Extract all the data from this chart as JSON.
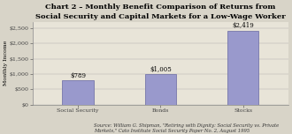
{
  "title": "Chart 2 – Monthly Benefit Comparison of Returns from\nSocial Security and Capital Markets for a Low-Wage Worker",
  "categories": [
    "Social Security",
    "Bonds",
    "Stocks"
  ],
  "values": [
    789,
    1005,
    2419
  ],
  "bar_labels": [
    "$789",
    "$1,005",
    "$2,419"
  ],
  "bar_color": "#9999cc",
  "bar_edge_color": "#7777aa",
  "ylabel": "Monthly Income",
  "ylim": [
    0,
    2700
  ],
  "yticks": [
    0,
    500,
    1000,
    1500,
    2000,
    2500
  ],
  "ytick_labels": [
    "$0",
    "$500",
    "$1,000",
    "$1,500",
    "$2,000",
    "$2,500"
  ],
  "source_text": "Source: William G. Shipman, \"Retiring with Dignity: Social Security vs. Private\nMarkets,\" Cato Institute Social Security Paper No. 2, August 1995",
  "bg_color": "#d8d4c8",
  "plot_bg_color": "#e8e4d8",
  "title_fontsize": 6.0,
  "label_fontsize": 4.5,
  "tick_fontsize": 4.5,
  "bar_label_fontsize": 5.0,
  "source_fontsize": 3.8,
  "bar_width": 0.38
}
